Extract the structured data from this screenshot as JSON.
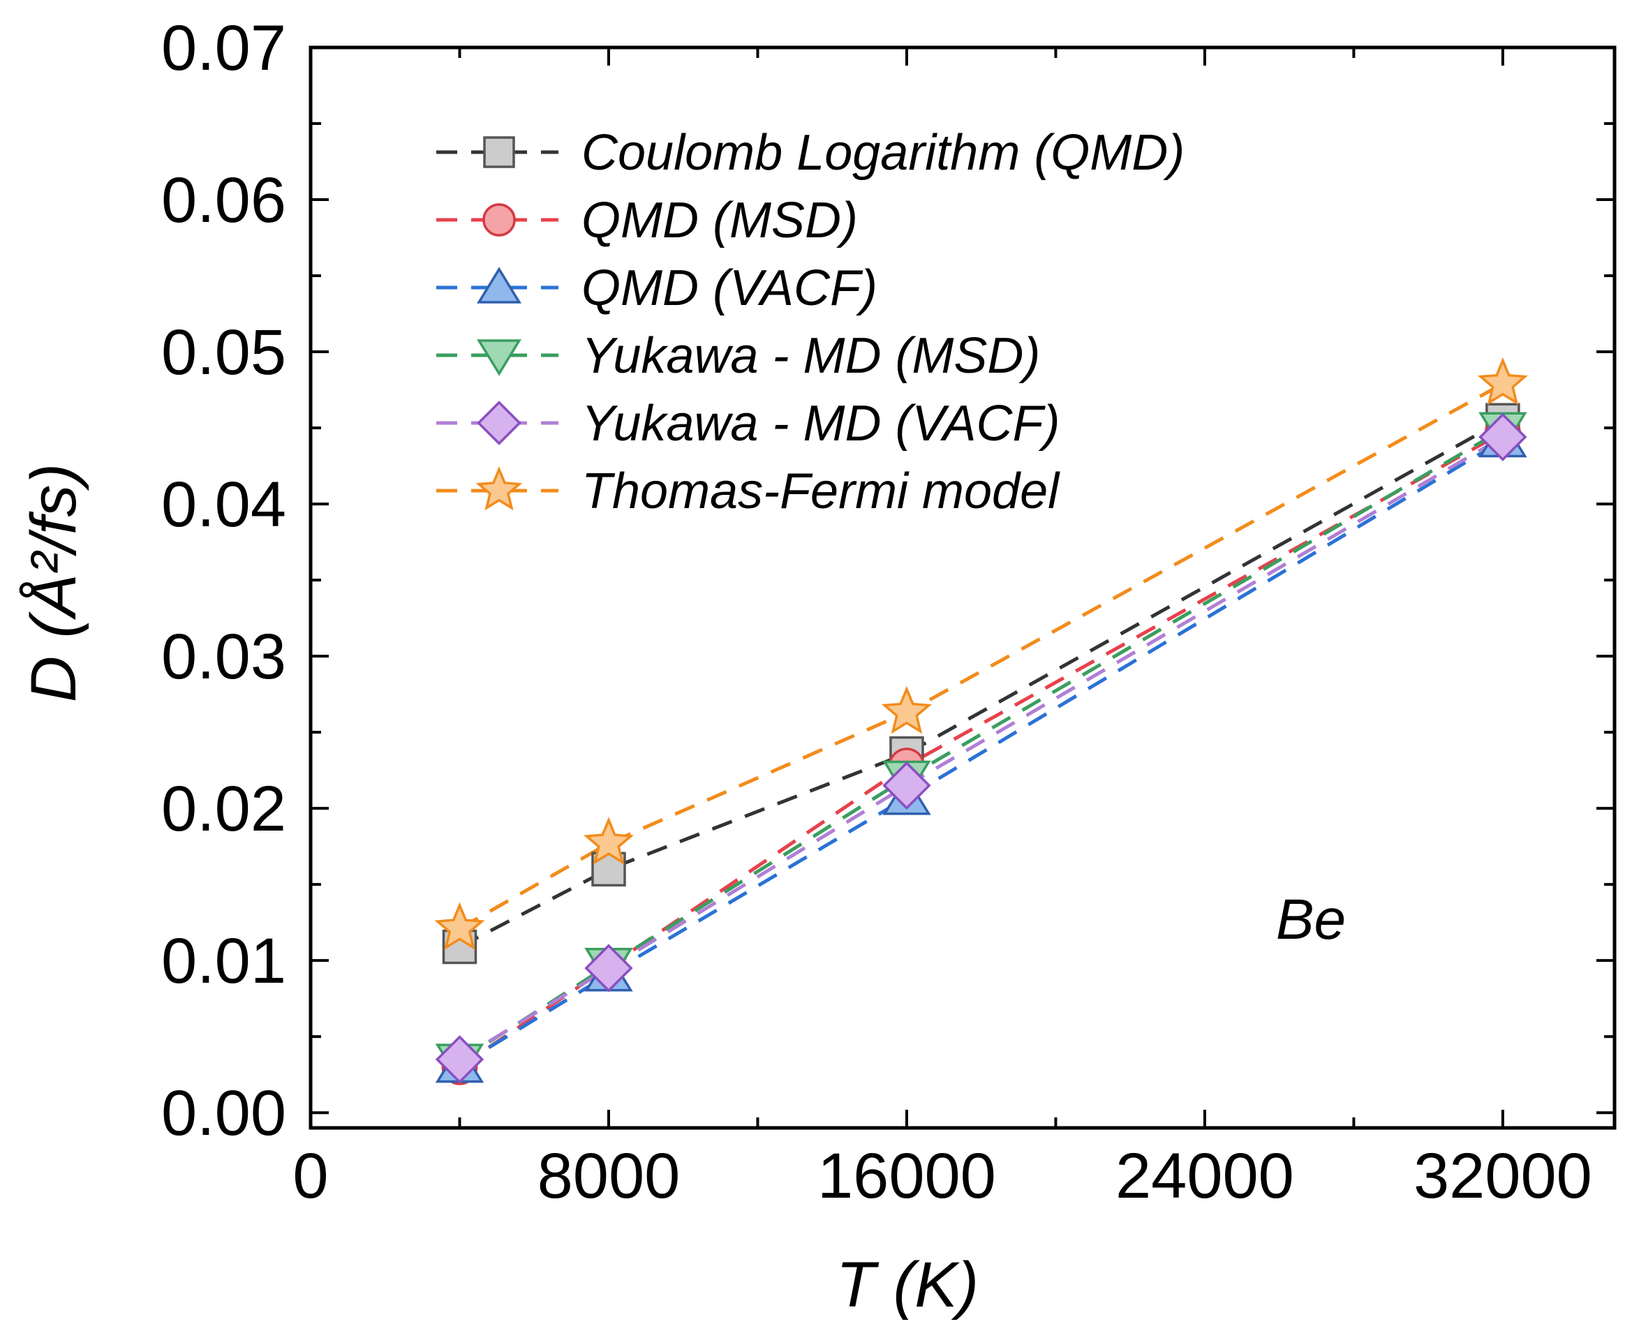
{
  "chart_data": {
    "type": "scatter",
    "title": "",
    "xlabel": "T (K)",
    "ylabel": "D (Å²/fs)",
    "xlim": [
      0,
      35000
    ],
    "ylim": [
      -0.001,
      0.07
    ],
    "x_ticks": [
      "0",
      "8000",
      "16000",
      "24000",
      "32000"
    ],
    "y_ticks": [
      "0.00",
      "0.01",
      "0.02",
      "0.03",
      "0.04",
      "0.05",
      "0.06",
      "0.07"
    ],
    "legend_position": "top-left",
    "annotation": "Be",
    "series": [
      {
        "name": "Coulomb Logarithm (QMD)",
        "marker": "square",
        "color": "#333333",
        "fill": "#cccccc",
        "stroke": "#555555",
        "x": [
          4000,
          8000,
          16000,
          32000
        ],
        "y": [
          0.0109,
          0.016,
          0.0236,
          0.0455
        ]
      },
      {
        "name": "QMD (MSD)",
        "marker": "circle",
        "color": "#e8414b",
        "fill": "#f4a3a6",
        "stroke": "#d43a44",
        "x": [
          4000,
          8000,
          16000,
          32000
        ],
        "y": [
          0.003,
          0.0096,
          0.0228,
          0.0447
        ]
      },
      {
        "name": "QMD (VACF)",
        "marker": "triangle-up",
        "color": "#2a72d5",
        "fill": "#8fb8ec",
        "stroke": "#2f5fae",
        "x": [
          4000,
          8000,
          16000,
          32000
        ],
        "y": [
          0.0031,
          0.0091,
          0.0207,
          0.0442
        ]
      },
      {
        "name": "Yukawa - MD (MSD)",
        "marker": "triangle-down",
        "color": "#3a9e5f",
        "fill": "#9fd9b3",
        "stroke": "#3a9e5f",
        "x": [
          4000,
          8000,
          16000,
          32000
        ],
        "y": [
          0.0034,
          0.0097,
          0.022,
          0.0449
        ]
      },
      {
        "name": "Yukawa - MD (VACF)",
        "marker": "diamond",
        "color": "#b07fd6",
        "fill": "#d6b3ee",
        "stroke": "#8a4fc0",
        "x": [
          4000,
          8000,
          16000,
          32000
        ],
        "y": [
          0.0035,
          0.0095,
          0.0215,
          0.0444
        ]
      },
      {
        "name": "Thomas-Fermi model",
        "marker": "star",
        "color": "#f28c1c",
        "fill": "#fbc990",
        "stroke": "#f28c1c",
        "x": [
          4000,
          8000,
          16000,
          32000
        ],
        "y": [
          0.0121,
          0.0177,
          0.0263,
          0.0479
        ]
      }
    ]
  }
}
